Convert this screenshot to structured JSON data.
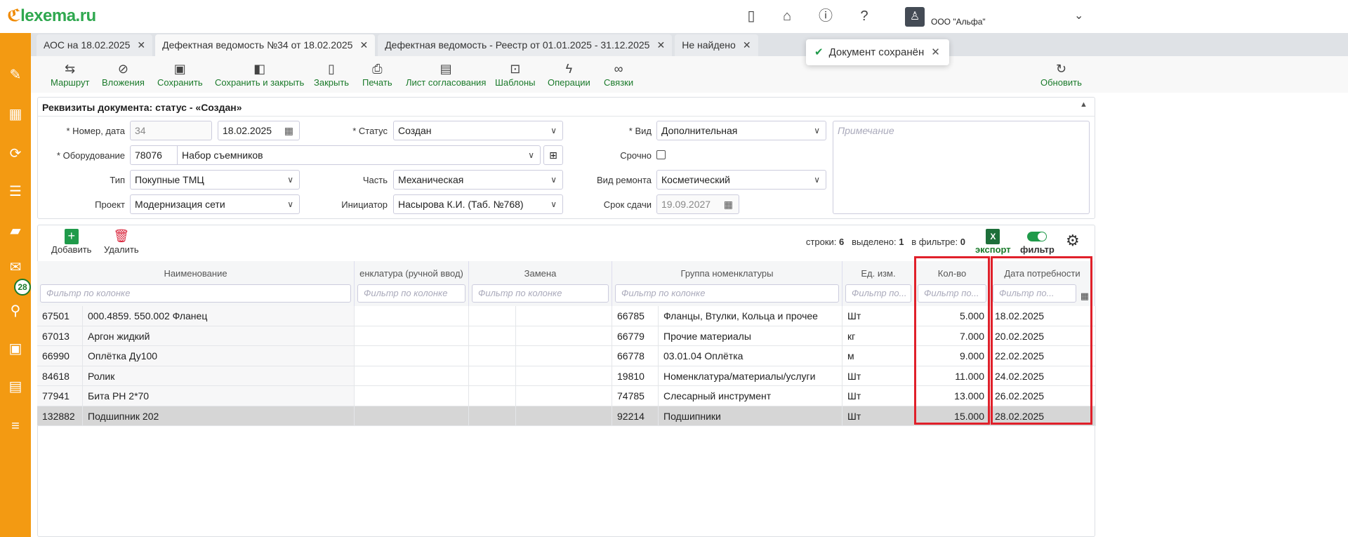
{
  "header": {
    "logo": "lexema.ru",
    "org": "ООО \"Альфа\"",
    "icons": [
      "phone-icon",
      "home-icon",
      "info-icon",
      "help-icon",
      "user-icon",
      "chevron-down-icon"
    ]
  },
  "sidebar": {
    "icons": [
      "pencil-icon",
      "qr-icon",
      "sync-icon",
      "import-icon",
      "folder-icon",
      "mail-icon",
      "search-icon",
      "calendar-icon",
      "table-clock-icon",
      "checklist-icon"
    ],
    "mail_badge": "28"
  },
  "tabs": [
    {
      "label": "АОС на 18.02.2025"
    },
    {
      "label": "Дефектная ведомость №34 от 18.02.2025",
      "active": true
    },
    {
      "label": "Дефектная ведомость - Реестр от 01.01.2025 - 31.12.2025"
    },
    {
      "label": "Не найдено"
    }
  ],
  "toast": {
    "text": "Документ сохранён"
  },
  "toolbar": {
    "route": "Маршрут",
    "attachments": "Вложения",
    "save": "Сохранить",
    "save_close": "Сохранить и закрыть",
    "close": "Закрыть",
    "print": "Печать",
    "approval_sheet": "Лист согласования",
    "templates": "Шаблоны",
    "operations": "Операции",
    "links": "Связки",
    "refresh": "Обновить"
  },
  "form": {
    "title": "Реквизиты документа: статус - «Создан»",
    "number_label": "* Номер, дата",
    "number": "34",
    "date": "18.02.2025",
    "status_label": "* Статус",
    "status": "Создан",
    "kind_label": "* Вид",
    "kind": "Дополнительная",
    "note_placeholder": "Примечание",
    "equipment_label": "* Оборудование",
    "equipment_code": "78076",
    "equipment_name": "Набор съемников",
    "urgent_label": "Срочно",
    "urgent": false,
    "type_label": "Тип",
    "type": "Покупные ТМЦ",
    "part_label": "Часть",
    "part": "Механическая",
    "repair_label": "Вид ремонта",
    "repair": "Косметический",
    "project_label": "Проект",
    "project": "Модернизация сети",
    "initiator_label": "Инициатор",
    "initiator": "Насырова К.И. (Таб. №768)",
    "due_label": "Срок сдачи",
    "due": "19.09.2027"
  },
  "grid": {
    "add": "Добавить",
    "delete": "Удалить",
    "rows_label": "строки:",
    "rows": "6",
    "selected_label": "выделено:",
    "selected": "1",
    "filtered_label": "в фильтре:",
    "filtered": "0",
    "export": "экспорт",
    "filter": "фильтр",
    "filter_on": true,
    "filter_placeholder": "Фильтр по колонке",
    "filter_placeholder_short": "Фильтр по...",
    "columns": [
      "Наименование",
      "енклатура (ручной ввод)",
      "Замена",
      "Группа номенклатуры",
      "Ед. изм.",
      "Кол-во",
      "Дата потребности"
    ],
    "rows_data": [
      {
        "code": "67501",
        "name": "000.4859. 550.002 Фланец",
        "gcode": "66785",
        "group": "Фланцы, Втулки, Кольца и прочее",
        "unit": "Шт",
        "qty": "5.000",
        "date": "18.02.2025"
      },
      {
        "code": "67013",
        "name": "Аргон жидкий",
        "gcode": "66779",
        "group": "Прочие материалы",
        "unit": "кг",
        "qty": "7.000",
        "date": "20.02.2025"
      },
      {
        "code": "66990",
        "name": "Оплётка Ду100",
        "gcode": "66778",
        "group": "03.01.04 Оплётка",
        "unit": "м",
        "qty": "9.000",
        "date": "22.02.2025"
      },
      {
        "code": "84618",
        "name": "Ролик",
        "gcode": "19810",
        "group": "Номенклатура/материалы/услуги",
        "unit": "Шт",
        "qty": "11.000",
        "date": "24.02.2025"
      },
      {
        "code": "77941",
        "name": "Бита PH 2*70",
        "gcode": "74785",
        "group": "Слесарный инструмент",
        "unit": "Шт",
        "qty": "13.000",
        "date": "26.02.2025"
      },
      {
        "code": "132882",
        "name": "Подшипник 202",
        "gcode": "92214",
        "group": "Подшипники",
        "unit": "Шт",
        "qty": "15.000",
        "date": "28.02.2025",
        "selected": true
      }
    ]
  },
  "colors": {
    "sidebar": "#f39a12",
    "accent_green": "#1a7a2a",
    "highlight": "#e0202a"
  }
}
